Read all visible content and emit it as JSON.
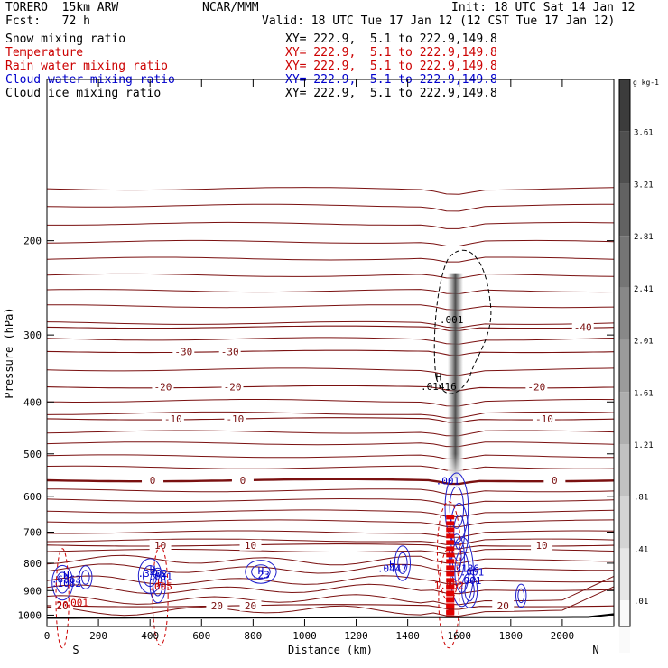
{
  "header": {
    "model": "TORERO  15km ARW",
    "fcst": "Fcst:   72 h",
    "center": "NCAR/MMM",
    "init": "Init: 18 UTC Sat 14 Jan 12",
    "valid": "Valid: 18 UTC Tue 17 Jan 12 (12 CST Tue 17 Jan 12)"
  },
  "legend": [
    {
      "name": "Snow mixing ratio",
      "color": "#000000",
      "xy": ""
    },
    {
      "name": "Temperature",
      "color": "#cc0000",
      "xy": "XY= 222.9,  5.1 to 222.9,149.8"
    },
    {
      "name": "Rain water mixing ratio",
      "color": "#cc0000",
      "xy": "XY= 222.9,  5.1 to 222.9,149.8"
    },
    {
      "name": "Cloud water mixing ratio",
      "color": "#0000cc",
      "xy": "XY= 222.9,  5.1 to 222.9,149.8"
    },
    {
      "name": "Cloud ice mixing ratio",
      "color": "#000000",
      "xy": "XY= 222.9,  5.1 to 222.9,149.8"
    }
  ],
  "snow_xy": "XY= 222.9,  5.1 to 222.9,149.8",
  "chart_data": {
    "type": "cross-section",
    "xlabel": "Distance (km)",
    "ylabel": "Pressure (hPa)",
    "xlim": [
      0,
      2200
    ],
    "ylim": [
      1050,
      100
    ],
    "x_ticks": [
      0,
      200,
      400,
      600,
      800,
      1000,
      1200,
      1400,
      1600,
      1800,
      2000
    ],
    "y_ticks": [
      200,
      300,
      400,
      500,
      600,
      700,
      800,
      900,
      1000
    ],
    "endpoint_left": "S",
    "endpoint_right": "N",
    "temperature_contours": [
      {
        "value": -40,
        "label": "-40",
        "p": 290,
        "label_x": [
          2080
        ]
      },
      {
        "value": -30,
        "label": "-30",
        "p": 322,
        "label_x": [
          530,
          710
        ]
      },
      {
        "value": -20,
        "label": "-20",
        "p": 375,
        "label_x": [
          450,
          720,
          1900
        ]
      },
      {
        "value": -10,
        "label": "-10",
        "p": 430,
        "label_x": [
          490,
          730,
          1930
        ]
      },
      {
        "value": 0,
        "label": "0",
        "p": 560,
        "label_x": [
          410,
          760,
          1970
        ]
      },
      {
        "value": 10,
        "label": "10",
        "p": 740,
        "label_x": [
          440,
          790,
          1920
        ]
      },
      {
        "value": 20,
        "label": "20",
        "p": 960,
        "label_x": [
          60,
          660,
          790,
          1770
        ]
      }
    ],
    "isotherm_p": [
      160,
      172,
      186,
      201,
      216,
      232,
      248,
      265,
      285,
      305,
      348,
      398,
      420,
      455,
      478,
      505,
      530,
      585,
      610,
      640,
      668,
      700,
      725,
      758,
      790,
      820,
      862,
      895,
      935,
      980
    ],
    "colorbar": {
      "title": "g kg-1",
      "labels": [
        "3.61",
        "3.21",
        "2.81",
        "2.41",
        "2.01",
        "1.61",
        "1.21",
        ".81",
        ".41",
        ".01"
      ]
    },
    "annotations": [
      {
        "text": ".001",
        "x": 1570,
        "p": 285,
        "color": "#000000"
      },
      {
        "text": "H",
        "x": 1520,
        "p": 365,
        "color": "#000000"
      },
      {
        "text": ".01416",
        "x": 1520,
        "p": 380,
        "color": "#000000"
      },
      {
        "text": ".001",
        "x": 1555,
        "p": 570,
        "color": "#0000cc"
      },
      {
        "text": "H",
        "x": 1340,
        "p": 815,
        "color": "#0000cc"
      },
      {
        "text": ".0447",
        "x": 1340,
        "p": 830,
        "color": "#0000cc"
      },
      {
        "text": ".3186",
        "x": 1620,
        "p": 830,
        "color": "#0000cc"
      },
      {
        "text": ".001",
        "x": 1650,
        "p": 843,
        "color": "#0000cc"
      },
      {
        "text": ".001",
        "x": 1640,
        "p": 875,
        "color": "#0000cc"
      },
      {
        "text": "H",
        "x": 1560,
        "p": 880,
        "color": "#cc0000"
      },
      {
        "text": "1.152",
        "x": 1560,
        "p": 893,
        "color": "#cc0000"
      },
      {
        "text": "H",
        "x": 410,
        "p": 833,
        "color": "#0000cc"
      },
      {
        "text": ".3402",
        "x": 410,
        "p": 848,
        "color": "#0000cc"
      },
      {
        "text": ".001",
        "x": 440,
        "p": 860,
        "color": "#0000cc"
      },
      {
        "text": "H",
        "x": 830,
        "p": 838,
        "color": "#0000cc"
      },
      {
        "text": ".23",
        "x": 830,
        "p": 853,
        "color": "#0000cc"
      },
      {
        "text": "H",
        "x": 75,
        "p": 855,
        "color": "#0000cc"
      },
      {
        "text": ".6863",
        "x": 75,
        "p": 870,
        "color": "#0000cc"
      },
      {
        "text": ".1082",
        "x": 75,
        "p": 885,
        "color": "#0000cc"
      },
      {
        "text": "H",
        "x": 440,
        "p": 883,
        "color": "#cc0000"
      },
      {
        "text": ".005",
        "x": 440,
        "p": 898,
        "color": "#cc0000"
      },
      {
        "text": ".001",
        "x": 115,
        "p": 962,
        "color": "#cc0000"
      },
      {
        "text": "20",
        "x": 60,
        "p": 972,
        "color": "#cc0000"
      }
    ]
  }
}
